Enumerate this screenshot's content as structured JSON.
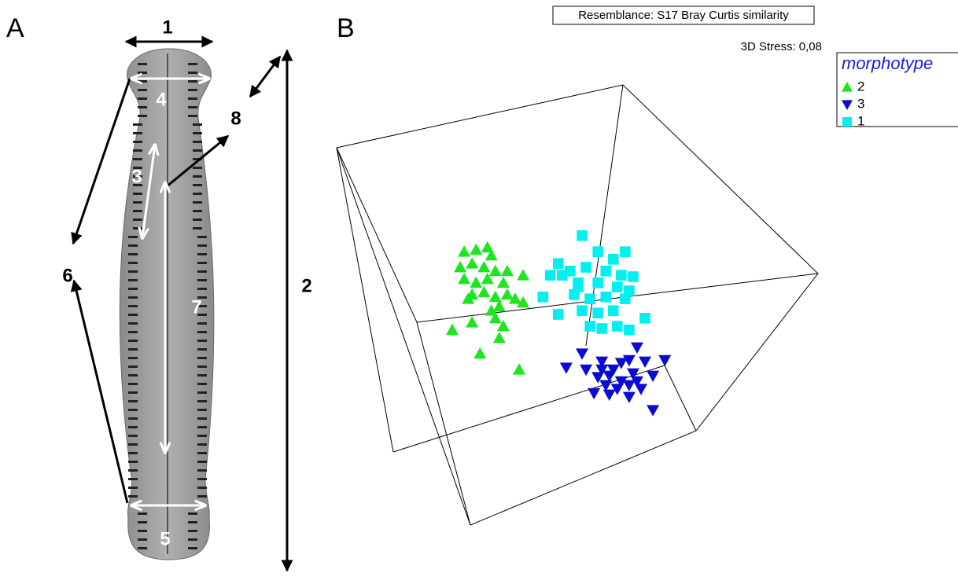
{
  "panel_a": {
    "label": "A",
    "measures": [
      "1",
      "2",
      "3",
      "4",
      "5",
      "6",
      "7",
      "8"
    ]
  },
  "chart_data": {
    "type": "scatter",
    "panel_label": "B",
    "title": "Resemblance: S17 Bray Curtis similarity",
    "annotation": "3D Stress: 0,08",
    "legend_title": "morphotype",
    "xlim": [
      0,
      100
    ],
    "ylim": [
      0,
      100
    ],
    "series": [
      {
        "name": "2",
        "color": "#1ee61e",
        "marker": "triangle-up",
        "x": [
          27.0,
          29.4,
          31.7,
          32.5,
          26.2,
          28.6,
          31.0,
          33.3,
          35.7,
          38.9,
          27.0,
          29.4,
          31.7,
          34.9,
          28.6,
          31.0,
          33.3,
          37.3,
          38.9,
          34.1,
          32.5,
          28.6,
          33.3,
          24.6,
          34.9,
          34.1,
          30.2,
          38.1,
          27.8,
          35.7
        ],
        "y": [
          63.3,
          63.7,
          64.2,
          62.5,
          60.0,
          60.8,
          60.0,
          59.2,
          59.2,
          58.3,
          57.5,
          56.7,
          57.5,
          56.7,
          54.2,
          54.7,
          53.7,
          53.3,
          52.5,
          51.7,
          50.8,
          48.3,
          49.2,
          46.7,
          47.5,
          45.0,
          41.7,
          38.3,
          53.3,
          54.2
        ]
      },
      {
        "name": "3",
        "color": "#0a0ad2",
        "marker": "triangle-down",
        "x": [
          50.8,
          61.9,
          47.6,
          51.6,
          54.8,
          58.7,
          60.3,
          63.5,
          67.5,
          54.0,
          56.3,
          58.7,
          61.1,
          65.1,
          55.6,
          57.9,
          60.3,
          62.7,
          53.2,
          56.3,
          60.3,
          65.1,
          54.8,
          61.9,
          57.1
        ],
        "y": [
          41.7,
          43.0,
          38.7,
          38.3,
          40.0,
          39.7,
          40.3,
          40.0,
          40.3,
          36.7,
          37.0,
          35.8,
          37.5,
          37.0,
          35.0,
          34.2,
          35.0,
          34.2,
          33.3,
          33.0,
          32.5,
          29.7,
          38.3,
          35.8,
          38.3
        ]
      },
      {
        "name": "1",
        "color": "#00f0f0",
        "marker": "square",
        "x": [
          50.8,
          54.0,
          57.1,
          59.5,
          46.0,
          48.4,
          51.6,
          55.6,
          58.7,
          61.1,
          44.4,
          46.8,
          50.0,
          54.0,
          57.9,
          60.3,
          42.9,
          49.2,
          52.4,
          55.6,
          59.5,
          46.0,
          50.8,
          54.0,
          57.1,
          63.5,
          52.4,
          54.8,
          57.9,
          60.3,
          50.0
        ],
        "y": [
          66.7,
          63.3,
          61.7,
          63.3,
          60.8,
          59.2,
          60.0,
          59.2,
          58.3,
          58.0,
          58.3,
          58.3,
          56.7,
          56.7,
          55.8,
          55.0,
          53.7,
          54.2,
          53.3,
          53.7,
          53.3,
          50.0,
          50.8,
          50.3,
          50.8,
          49.2,
          47.5,
          47.0,
          47.5,
          46.7,
          55.8
        ]
      }
    ]
  }
}
